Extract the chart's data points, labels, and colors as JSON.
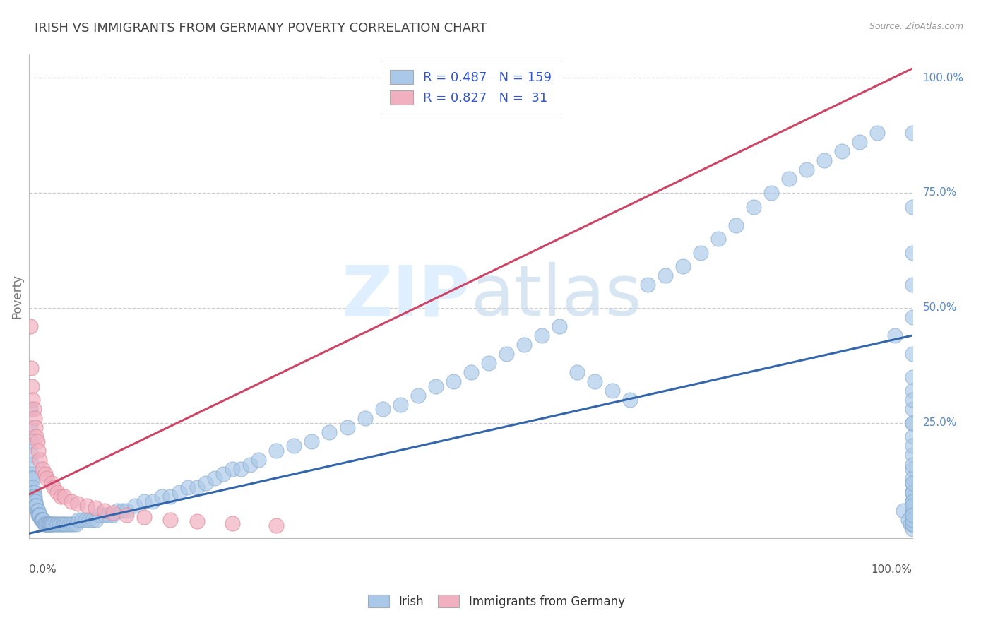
{
  "title": "IRISH VS IMMIGRANTS FROM GERMANY POVERTY CORRELATION CHART",
  "source": "Source: ZipAtlas.com",
  "ylabel": "Poverty",
  "blue_color": "#aac8e8",
  "pink_color": "#f0b0c0",
  "blue_edge": "#88aacc",
  "pink_edge": "#dd8898",
  "blue_line_color": "#3366aa",
  "pink_line_color": "#cc4466",
  "text_color": "#3355cc",
  "title_color": "#444444",
  "background_color": "#ffffff",
  "grid_color": "#cccccc",
  "legend_blue_label": "R = 0.487   N = 159",
  "legend_pink_label": "R = 0.827   N =  31",
  "bottom_blue_label": "Irish",
  "bottom_pink_label": "Immigrants from Germany",
  "blue_trend": [
    0.0,
    0.01,
    1.0,
    0.44
  ],
  "pink_trend": [
    0.0,
    0.095,
    1.0,
    1.02
  ],
  "xlim": [
    0.0,
    1.0
  ],
  "ylim": [
    0.0,
    1.05
  ],
  "grid_yvals": [
    0.25,
    0.5,
    0.75,
    1.0
  ],
  "right_yticks": [
    [
      1.0,
      "100.0%"
    ],
    [
      0.75,
      "75.0%"
    ],
    [
      0.5,
      "50.0%"
    ],
    [
      0.25,
      "25.0%"
    ]
  ],
  "blue_x": [
    0.001,
    0.001,
    0.002,
    0.002,
    0.003,
    0.003,
    0.003,
    0.004,
    0.004,
    0.005,
    0.005,
    0.005,
    0.006,
    0.006,
    0.007,
    0.007,
    0.008,
    0.008,
    0.009,
    0.009,
    0.01,
    0.01,
    0.011,
    0.012,
    0.012,
    0.013,
    0.014,
    0.015,
    0.015,
    0.016,
    0.017,
    0.018,
    0.019,
    0.02,
    0.021,
    0.022,
    0.023,
    0.024,
    0.025,
    0.026,
    0.028,
    0.03,
    0.032,
    0.034,
    0.036,
    0.038,
    0.04,
    0.042,
    0.045,
    0.048,
    0.05,
    0.053,
    0.056,
    0.06,
    0.064,
    0.068,
    0.072,
    0.076,
    0.08,
    0.085,
    0.09,
    0.095,
    0.1,
    0.105,
    0.11,
    0.12,
    0.13,
    0.14,
    0.15,
    0.16,
    0.17,
    0.18,
    0.19,
    0.2,
    0.21,
    0.22,
    0.23,
    0.24,
    0.25,
    0.26,
    0.28,
    0.3,
    0.32,
    0.34,
    0.36,
    0.38,
    0.4,
    0.42,
    0.44,
    0.46,
    0.48,
    0.5,
    0.52,
    0.54,
    0.56,
    0.58,
    0.6,
    0.62,
    0.64,
    0.66,
    0.68,
    0.7,
    0.72,
    0.74,
    0.76,
    0.78,
    0.8,
    0.82,
    0.84,
    0.86,
    0.88,
    0.9,
    0.92,
    0.94,
    0.96,
    0.98,
    0.99,
    0.995,
    0.998,
    1.0,
    1.0,
    1.0,
    1.0,
    1.0,
    1.0,
    1.0,
    1.0,
    1.0,
    1.0,
    1.0,
    1.0,
    1.0,
    1.0,
    1.0,
    1.0,
    1.0,
    1.0,
    1.0,
    1.0,
    1.0,
    1.0,
    1.0,
    1.0,
    1.0,
    1.0,
    1.0,
    1.0,
    1.0,
    1.0,
    1.0,
    1.0,
    1.0,
    1.0,
    1.0,
    1.0,
    1.0,
    1.0,
    1.0,
    1.0
  ],
  "blue_y": [
    0.28,
    0.24,
    0.21,
    0.18,
    0.16,
    0.14,
    0.13,
    0.13,
    0.11,
    0.1,
    0.1,
    0.09,
    0.09,
    0.08,
    0.08,
    0.07,
    0.07,
    0.07,
    0.06,
    0.06,
    0.06,
    0.05,
    0.05,
    0.05,
    0.05,
    0.04,
    0.04,
    0.04,
    0.04,
    0.04,
    0.03,
    0.03,
    0.03,
    0.03,
    0.03,
    0.03,
    0.03,
    0.03,
    0.03,
    0.03,
    0.03,
    0.03,
    0.03,
    0.03,
    0.03,
    0.03,
    0.03,
    0.03,
    0.03,
    0.03,
    0.03,
    0.03,
    0.04,
    0.04,
    0.04,
    0.04,
    0.04,
    0.04,
    0.05,
    0.05,
    0.05,
    0.05,
    0.06,
    0.06,
    0.06,
    0.07,
    0.08,
    0.08,
    0.09,
    0.09,
    0.1,
    0.11,
    0.11,
    0.12,
    0.13,
    0.14,
    0.15,
    0.15,
    0.16,
    0.17,
    0.19,
    0.2,
    0.21,
    0.23,
    0.24,
    0.26,
    0.28,
    0.29,
    0.31,
    0.33,
    0.34,
    0.36,
    0.38,
    0.4,
    0.42,
    0.44,
    0.46,
    0.36,
    0.34,
    0.32,
    0.3,
    0.55,
    0.57,
    0.59,
    0.62,
    0.65,
    0.68,
    0.72,
    0.75,
    0.78,
    0.8,
    0.82,
    0.84,
    0.86,
    0.88,
    0.44,
    0.06,
    0.04,
    0.03,
    0.88,
    0.72,
    0.62,
    0.55,
    0.48,
    0.4,
    0.35,
    0.32,
    0.28,
    0.25,
    0.22,
    0.18,
    0.15,
    0.12,
    0.1,
    0.08,
    0.06,
    0.05,
    0.04,
    0.03,
    0.02,
    0.03,
    0.04,
    0.05,
    0.06,
    0.08,
    0.1,
    0.13,
    0.16,
    0.2,
    0.25,
    0.3,
    0.1,
    0.05,
    0.03,
    0.04,
    0.08,
    0.12,
    0.07,
    0.05
  ],
  "pink_x": [
    0.001,
    0.002,
    0.003,
    0.004,
    0.005,
    0.006,
    0.007,
    0.008,
    0.009,
    0.01,
    0.012,
    0.015,
    0.018,
    0.02,
    0.025,
    0.028,
    0.032,
    0.036,
    0.04,
    0.048,
    0.055,
    0.065,
    0.075,
    0.085,
    0.095,
    0.11,
    0.13,
    0.16,
    0.19,
    0.23,
    0.28
  ],
  "pink_y": [
    0.46,
    0.37,
    0.33,
    0.3,
    0.28,
    0.26,
    0.24,
    0.22,
    0.21,
    0.19,
    0.17,
    0.15,
    0.14,
    0.13,
    0.12,
    0.11,
    0.1,
    0.09,
    0.09,
    0.08,
    0.075,
    0.07,
    0.065,
    0.06,
    0.055,
    0.05,
    0.045,
    0.04,
    0.036,
    0.032,
    0.028
  ]
}
